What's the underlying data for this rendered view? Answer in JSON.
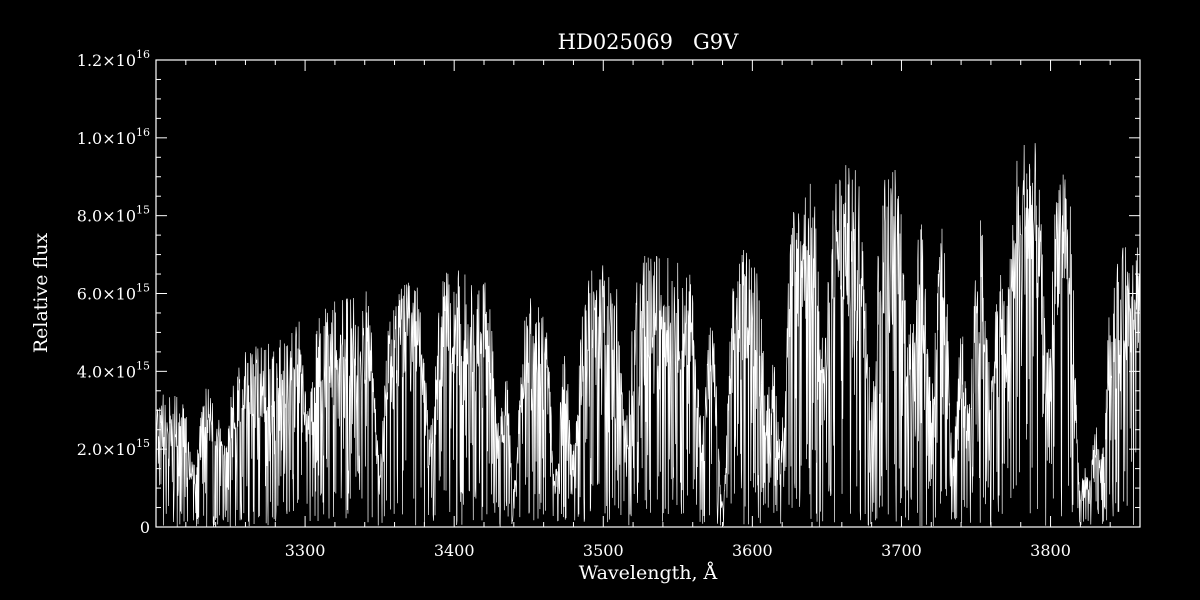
{
  "chart_data": {
    "type": "line",
    "title": "HD025069   G9V",
    "xlabel": "Wavelength, Å",
    "ylabel": "Relative flux",
    "xlim": [
      3200,
      3860
    ],
    "ylim": [
      0,
      1.2e+16
    ],
    "grid": false,
    "legend": "none",
    "colors": {
      "background": "#000000",
      "foreground": "#ffffff"
    },
    "x_ticks": [
      3300,
      3400,
      3500,
      3600,
      3700,
      3800
    ],
    "x_tick_labels": [
      "3300",
      "3400",
      "3500",
      "3600",
      "3700",
      "3800"
    ],
    "y_ticks": [
      0,
      2000000000000000.0,
      4000000000000000.0,
      6000000000000000.0,
      8000000000000000.0,
      1e+16,
      1.2e+16
    ],
    "y_tick_labels": [
      {
        "mantissa": "0",
        "exponent": ""
      },
      {
        "mantissa": "2.0×10",
        "exponent": "15"
      },
      {
        "mantissa": "4.0×10",
        "exponent": "15"
      },
      {
        "mantissa": "6.0×10",
        "exponent": "15"
      },
      {
        "mantissa": "8.0×10",
        "exponent": "15"
      },
      {
        "mantissa": "1.0×10",
        "exponent": "16"
      },
      {
        "mantissa": "1.2×10",
        "exponent": "16"
      }
    ],
    "envelope": {
      "x": [
        3200,
        3210,
        3225,
        3240,
        3250,
        3255,
        3260,
        3270,
        3280,
        3290,
        3295,
        3300,
        3320,
        3350,
        3380,
        3400,
        3420,
        3440,
        3460,
        3480,
        3500,
        3520,
        3540,
        3560,
        3575,
        3590,
        3600,
        3620,
        3640,
        3660,
        3680,
        3700,
        3720,
        3740,
        3760,
        3780,
        3800,
        3810,
        3830,
        3845,
        3860
      ],
      "y": [
        3300000000000000.0,
        3400000000000000.0,
        3500000000000000.0,
        3600000000000000.0,
        3600000000000000.0,
        4200000000000000.0,
        4500000000000000.0,
        4600000000000000.0,
        4700000000000000.0,
        4800000000000000.0,
        5600000000000000.0,
        5700000000000000.0,
        5800000000000000.0,
        6100000000000000.0,
        6200000000000000.0,
        6500000000000000.0,
        6300000000000000.0,
        5800000000000000.0,
        5800000000000000.0,
        6000000000000000.0,
        6800000000000000.0,
        6800000000000000.0,
        6900000000000000.0,
        6500000000000000.0,
        5900000000000000.0,
        6800000000000000.0,
        7300000000000000.0,
        8000000000000000.0,
        8800000000000000.0,
        9200000000000000.0,
        8900000000000000.0,
        9300000000000000.0,
        8500000000000000.0,
        7600000000000000.0,
        8800000000000000.0,
        9900000000000000.0,
        9800000000000000.0,
        9500000000000000.0,
        6000000000000000.0,
        6900000000000000.0,
        7500000000000000.0
      ]
    },
    "dips": [
      {
        "x": 3225,
        "depth": 0.55
      },
      {
        "x": 3245,
        "depth": 0.35
      },
      {
        "x": 3302,
        "depth": 0.45
      },
      {
        "x": 3350,
        "depth": 0.7
      },
      {
        "x": 3384,
        "depth": 0.6
      },
      {
        "x": 3430,
        "depth": 0.55
      },
      {
        "x": 3440,
        "depth": 0.8
      },
      {
        "x": 3468,
        "depth": 0.75
      },
      {
        "x": 3480,
        "depth": 0.65
      },
      {
        "x": 3515,
        "depth": 0.6
      },
      {
        "x": 3566,
        "depth": 0.55
      },
      {
        "x": 3580,
        "depth": 0.9
      },
      {
        "x": 3610,
        "depth": 0.55
      },
      {
        "x": 3619,
        "depth": 0.7
      },
      {
        "x": 3648,
        "depth": 0.45
      },
      {
        "x": 3680,
        "depth": 0.55
      },
      {
        "x": 3705,
        "depth": 0.45
      },
      {
        "x": 3720,
        "depth": 0.55
      },
      {
        "x": 3735,
        "depth": 0.7
      },
      {
        "x": 3745,
        "depth": 0.6
      },
      {
        "x": 3760,
        "depth": 0.55
      },
      {
        "x": 3770,
        "depth": 0.4
      },
      {
        "x": 3798,
        "depth": 0.55
      },
      {
        "x": 3820,
        "depth": 0.85
      },
      {
        "x": 3826,
        "depth": 0.8
      },
      {
        "x": 3834,
        "depth": 0.7
      }
    ],
    "n_samples": 2600
  }
}
